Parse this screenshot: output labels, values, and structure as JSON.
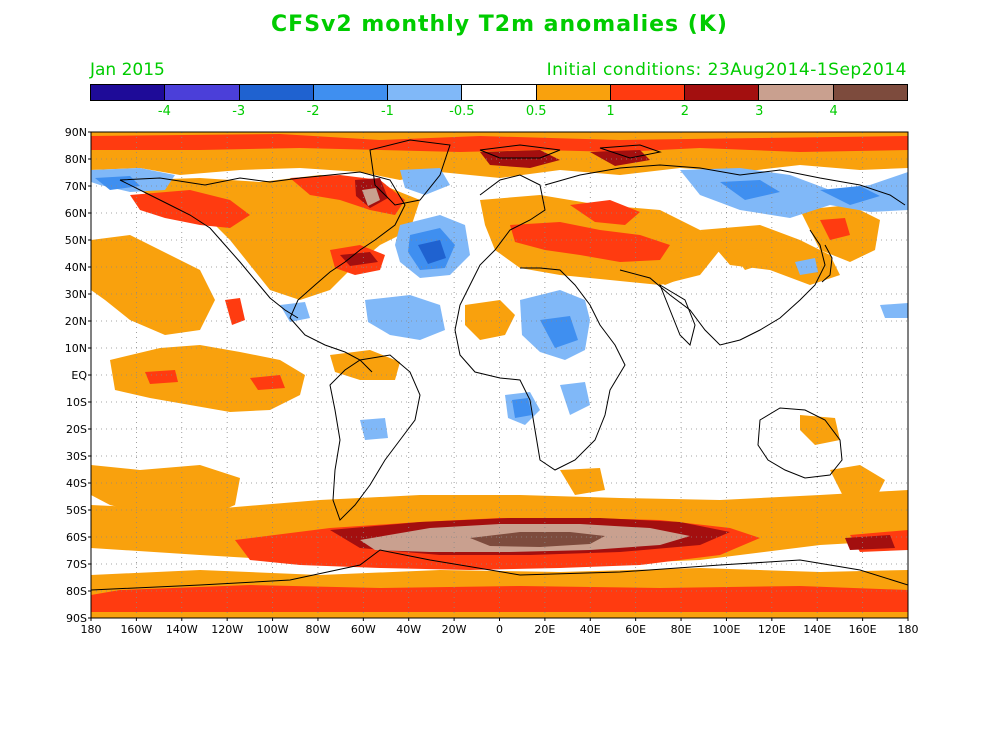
{
  "header": {
    "title": "CFSv2 monthly T2m anomalies (K)",
    "valid_month": "Jan 2015",
    "initial_conditions": "Initial conditions: 23Aug2014-1Sep2014"
  },
  "legend": {
    "colors": [
      "#1e0b98",
      "#4b3fd9",
      "#1f62d0",
      "#3f8ff0",
      "#80b8f8",
      "#ffffff",
      "#f9a10d",
      "#ff3b10",
      "#a30f0f",
      "#c9a08f",
      "#7d4b3d"
    ],
    "labels": [
      "-4",
      "-3",
      "-2",
      "-1",
      "-0.5",
      "0.5",
      "1",
      "2",
      "3",
      "4"
    ]
  },
  "axes": {
    "lat_labels": [
      "90N",
      "80N",
      "70N",
      "60N",
      "50N",
      "40N",
      "30N",
      "20N",
      "10N",
      "EQ",
      "10S",
      "20S",
      "30S",
      "40S",
      "50S",
      "60S",
      "70S",
      "80S",
      "90S"
    ],
    "lon_labels": [
      "180",
      "160W",
      "140W",
      "120W",
      "100W",
      "80W",
      "60W",
      "40W",
      "20W",
      "0",
      "20E",
      "40E",
      "60E",
      "80E",
      "100E",
      "120E",
      "140E",
      "160E",
      "180"
    ],
    "grid": true
  },
  "colors": {
    "text_accent": "#00cc00",
    "orange": "#f9a10d",
    "red": "#ff3b10",
    "darkred": "#a30f0f",
    "pink": "#c9a08f",
    "brown": "#7d4b3d",
    "lightblue": "#80b8f8",
    "blue": "#3f8ff0",
    "midblue": "#1f62d0"
  }
}
